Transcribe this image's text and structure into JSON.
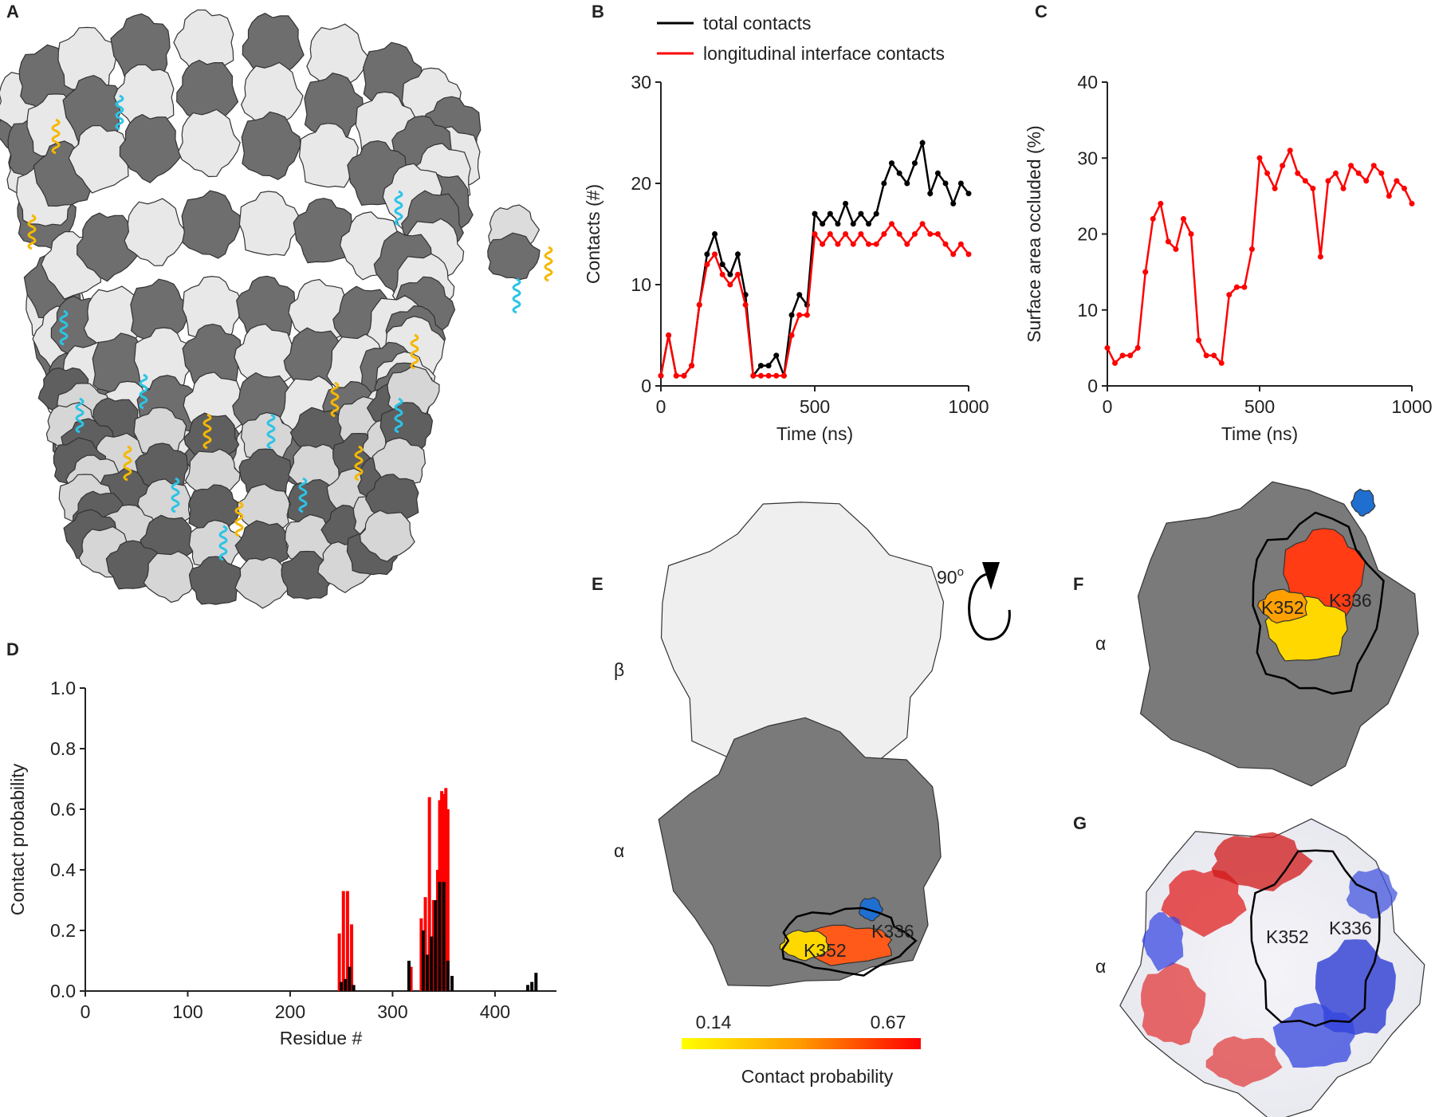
{
  "chart_data": [
    {
      "type": "line",
      "panel": "B",
      "xlabel": "Time (ns)",
      "ylabel": "Contacts (#)",
      "xlim": [
        0,
        1000
      ],
      "ylim": [
        0,
        30
      ],
      "xticks": [
        0,
        500,
        1000
      ],
      "yticks": [
        0,
        10,
        20,
        30
      ],
      "series": [
        {
          "name": "total contacts",
          "color": "#000000",
          "x": [
            0,
            25,
            50,
            75,
            100,
            125,
            150,
            175,
            200,
            225,
            250,
            275,
            300,
            325,
            350,
            375,
            400,
            425,
            450,
            475,
            500,
            525,
            550,
            575,
            600,
            625,
            650,
            675,
            700,
            725,
            750,
            775,
            800,
            825,
            850,
            875,
            900,
            925,
            950,
            975,
            1000
          ],
          "values": [
            1,
            5,
            1,
            1,
            2,
            8,
            13,
            15,
            12,
            11,
            13,
            9,
            1,
            2,
            2,
            3,
            1,
            7,
            9,
            8,
            17,
            16,
            17,
            16,
            18,
            16,
            17,
            16,
            17,
            20,
            22,
            21,
            20,
            22,
            24,
            19,
            21,
            20,
            18,
            20,
            19
          ]
        },
        {
          "name": "longitudinal interface contacts",
          "color": "#ff0000",
          "x": [
            0,
            25,
            50,
            75,
            100,
            125,
            150,
            175,
            200,
            225,
            250,
            275,
            300,
            325,
            350,
            375,
            400,
            425,
            450,
            475,
            500,
            525,
            550,
            575,
            600,
            625,
            650,
            675,
            700,
            725,
            750,
            775,
            800,
            825,
            850,
            875,
            900,
            925,
            950,
            975,
            1000
          ],
          "values": [
            1,
            5,
            1,
            1,
            2,
            8,
            12,
            13,
            11,
            10,
            11,
            8,
            1,
            1,
            1,
            1,
            1,
            5,
            7,
            7,
            15,
            14,
            15,
            14,
            15,
            14,
            15,
            14,
            14,
            15,
            16,
            15,
            14,
            15,
            16,
            15,
            15,
            14,
            13,
            14,
            13
          ]
        }
      ]
    },
    {
      "type": "line",
      "panel": "C",
      "xlabel": "Time (ns)",
      "ylabel": "Surface area occluded (%)",
      "xlim": [
        0,
        1000
      ],
      "ylim": [
        0,
        40
      ],
      "xticks": [
        0,
        500,
        1000
      ],
      "yticks": [
        0,
        10,
        20,
        30,
        40
      ],
      "series": [
        {
          "color": "#ff0000",
          "x": [
            0,
            25,
            50,
            75,
            100,
            125,
            150,
            175,
            200,
            225,
            250,
            275,
            300,
            325,
            350,
            375,
            400,
            425,
            450,
            475,
            500,
            525,
            550,
            575,
            600,
            625,
            650,
            675,
            700,
            725,
            750,
            775,
            800,
            825,
            850,
            875,
            900,
            925,
            950,
            975,
            1000
          ],
          "values": [
            5,
            3,
            4,
            4,
            5,
            15,
            22,
            24,
            19,
            18,
            22,
            20,
            6,
            4,
            4,
            3,
            12,
            13,
            13,
            18,
            30,
            28,
            26,
            29,
            31,
            28,
            27,
            26,
            17,
            27,
            28,
            26,
            29,
            28,
            27,
            29,
            28,
            25,
            27,
            26,
            24
          ]
        }
      ]
    },
    {
      "type": "bar",
      "panel": "D",
      "xlabel": "Residue #",
      "ylabel": "Contact probability",
      "xlim": [
        0,
        460
      ],
      "ylim": [
        0,
        1.0
      ],
      "xticks": [
        0,
        100,
        200,
        300,
        400
      ],
      "yticks": [
        {
          "value": 0,
          "label": "0.0"
        },
        {
          "value": 0.2,
          "label": "0.2"
        },
        {
          "value": 0.4,
          "label": "0.4"
        },
        {
          "value": 0.6,
          "label": "0.6"
        },
        {
          "value": 0.8,
          "label": "0.8"
        },
        {
          "value": 1.0,
          "label": "1.0"
        }
      ],
      "series": [
        {
          "color": "#ff0000",
          "x": [
            248,
            252,
            256,
            260,
            318,
            328,
            332,
            336,
            340,
            344,
            346,
            348,
            350,
            352,
            354
          ],
          "values": [
            0.19,
            0.33,
            0.33,
            0.22,
            0.08,
            0.24,
            0.31,
            0.64,
            0.3,
            0.4,
            0.63,
            0.66,
            0.65,
            0.67,
            0.6
          ]
        },
        {
          "color": "#000000",
          "x": [
            250,
            254,
            258,
            262,
            316,
            330,
            334,
            338,
            342,
            346,
            350,
            354,
            358,
            432,
            436,
            440
          ],
          "values": [
            0.03,
            0.04,
            0.08,
            0.02,
            0.1,
            0.2,
            0.12,
            0.18,
            0.3,
            0.36,
            0.36,
            0.1,
            0.05,
            0.02,
            0.03,
            0.06
          ]
        }
      ]
    }
  ],
  "panel_labels": [
    "A",
    "E",
    "F",
    "G"
  ],
  "structure_labels": {
    "beta": "β",
    "alpha_e": "α",
    "alpha_f": "α",
    "alpha_g": "α",
    "k352_e": "K352",
    "k336_e": "K336",
    "k352_f": "K352",
    "k336_f": "K336",
    "k352_g": "K352",
    "k336_g": "K336",
    "rotation": "90",
    "rotation_sup": "o"
  },
  "colorbar": {
    "min": 0.14,
    "max": 0.67,
    "label": "Contact probability"
  }
}
